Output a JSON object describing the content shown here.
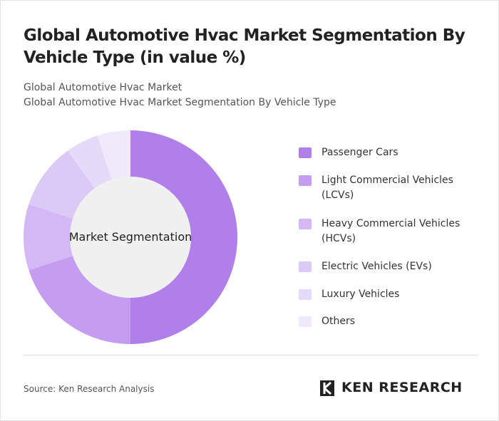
{
  "chart_data": {
    "type": "donut",
    "title": "Global Automotive Hvac Market Segmentation By Vehicle Type (in value %)",
    "subtitle": [
      "Global Automotive Hvac Market",
      "Global Automotive Hvac Market Segmentation By Vehicle Type"
    ],
    "center_label": "Market Segmentation",
    "categories": [
      "Passenger Cars",
      "Light Commercial Vehicles (LCVs)",
      "Heavy Commercial Vehicles (HCVs)",
      "Electric Vehicles (EVs)",
      "Luxury Vehicles",
      "Others"
    ],
    "values": [
      50,
      20,
      10,
      10,
      5,
      5
    ],
    "colors": [
      "#b07fea",
      "#c49cf0",
      "#d3b8f5",
      "#dccaf6",
      "#e6daf9",
      "#f0e9fb"
    ],
    "source": "Source: Ken Research Analysis",
    "brand": "KEN RESEARCH"
  }
}
